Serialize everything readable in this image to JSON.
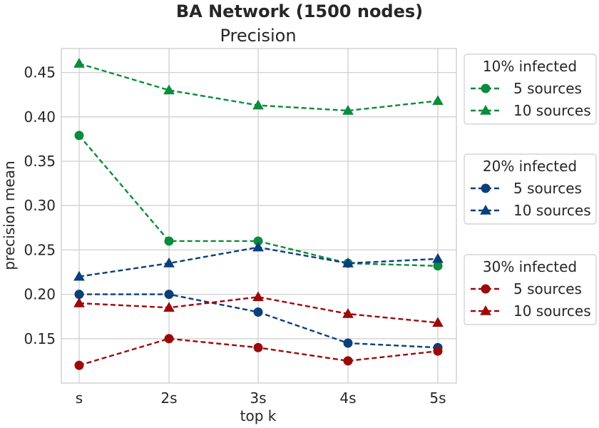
{
  "chart_data": {
    "type": "line",
    "suptitle": "BA Network (1500 nodes)",
    "title": "Precision",
    "xlabel": "top k",
    "ylabel": "precision mean",
    "categories": [
      "s",
      "2s",
      "3s",
      "4s",
      "5s"
    ],
    "ylim": [
      0.1,
      0.477
    ],
    "yticks": [
      "0.15",
      "0.20",
      "0.25",
      "0.30",
      "0.35",
      "0.40",
      "0.45"
    ],
    "grid": true,
    "legend_groups": [
      {
        "title": "10% infected",
        "color": "#0a8c3c",
        "series": [
          {
            "name": "5 sources",
            "marker": "circle",
            "values": [
              0.379,
              0.26,
              0.26,
              0.235,
              0.232
            ]
          },
          {
            "name": "10 sources",
            "marker": "triangle",
            "values": [
              0.46,
              0.43,
              0.413,
              0.407,
              0.418
            ]
          }
        ]
      },
      {
        "title": "20% infected",
        "color": "#0b3f7a",
        "series": [
          {
            "name": "5 sources",
            "marker": "circle",
            "values": [
              0.2,
              0.2,
              0.18,
              0.145,
              0.14
            ]
          },
          {
            "name": "10 sources",
            "marker": "triangle",
            "values": [
              0.22,
              0.235,
              0.253,
              0.235,
              0.24
            ]
          }
        ]
      },
      {
        "title": "30% infected",
        "color": "#9b0a0a",
        "series": [
          {
            "name": "5 sources",
            "marker": "circle",
            "values": [
              0.12,
              0.15,
              0.14,
              0.125,
              0.136
            ]
          },
          {
            "name": "10 sources",
            "marker": "triangle",
            "values": [
              0.19,
              0.185,
              0.197,
              0.178,
              0.168
            ]
          }
        ]
      }
    ]
  }
}
